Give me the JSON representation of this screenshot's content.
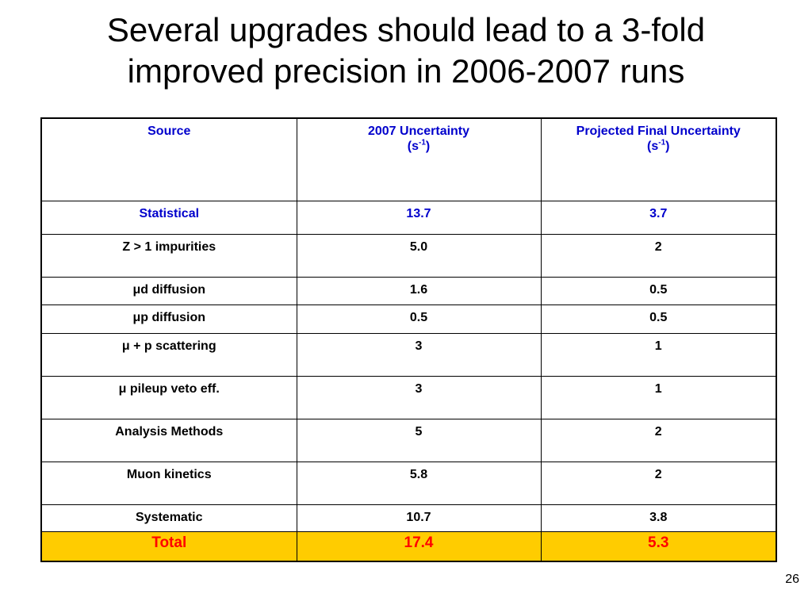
{
  "title": {
    "line1": "Several upgrades should lead to a 3-fold",
    "line2": "improved precision in 2006-2007 runs"
  },
  "table": {
    "headers": {
      "source": "Source",
      "uncertainty_2007": "2007 Uncertainty",
      "uncertainty_2007_unit": "(s",
      "projected": "Projected Final Uncertainty",
      "projected_unit": "(s",
      "unit_exp": "-1",
      "unit_close": ")"
    },
    "rows": [
      {
        "source": "Statistical",
        "u2007": "13.7",
        "projected": "3.7"
      },
      {
        "source": "Z > 1 impurities",
        "u2007": "5.0",
        "projected": "2"
      },
      {
        "source": "μd diffusion",
        "u2007": "1.6",
        "projected": "0.5"
      },
      {
        "source": "μp diffusion",
        "u2007": "0.5",
        "projected": "0.5"
      },
      {
        "source": "μ + p scattering",
        "u2007": "3",
        "projected": "1"
      },
      {
        "source": "μ pileup veto eff.",
        "u2007": "3",
        "projected": "1"
      },
      {
        "source": "Analysis Methods",
        "u2007": "5",
        "projected": "2"
      },
      {
        "source": "Muon kinetics",
        "u2007": "5.8",
        "projected": "2"
      },
      {
        "source": "Systematic",
        "u2007": "10.7",
        "projected": "3.8"
      },
      {
        "source": "Total",
        "u2007": "17.4",
        "projected": "5.3"
      }
    ]
  },
  "page_number": "26",
  "colors": {
    "header_text": "#0000cc",
    "total_bg": "#ffcc00",
    "total_text": "#ff0000"
  }
}
